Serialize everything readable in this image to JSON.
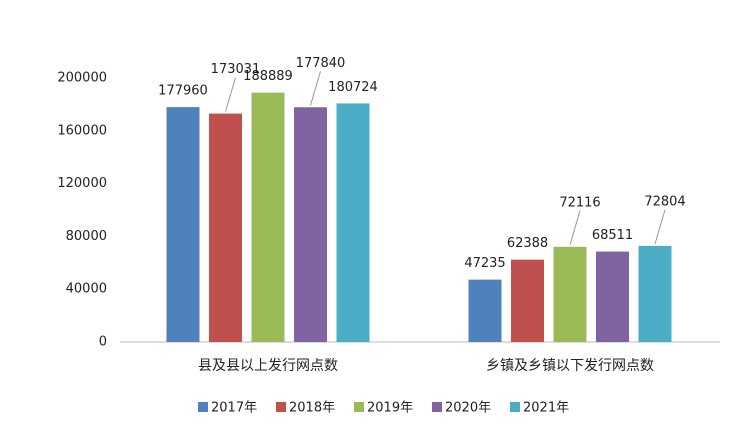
{
  "chart_data": {
    "type": "bar",
    "categories": [
      "县及县以上发行网点数",
      "乡镇及乡镇以下发行网点数"
    ],
    "series": [
      {
        "name": "2017年",
        "color": "#4f81bd",
        "values": [
          177960,
          47235
        ]
      },
      {
        "name": "2018年",
        "color": "#c0504d",
        "values": [
          173031,
          62388
        ]
      },
      {
        "name": "2019年",
        "color": "#9bbb59",
        "values": [
          188889,
          72116
        ]
      },
      {
        "name": "2020年",
        "color": "#8064a2",
        "values": [
          177840,
          68511
        ]
      },
      {
        "name": "2021年",
        "color": "#4bacc6",
        "values": [
          180724,
          72804
        ]
      }
    ],
    "ylim": [
      0,
      200000
    ],
    "yticks": [
      0,
      40000,
      80000,
      120000,
      160000,
      200000
    ],
    "grid": false,
    "legend": "bottom"
  }
}
